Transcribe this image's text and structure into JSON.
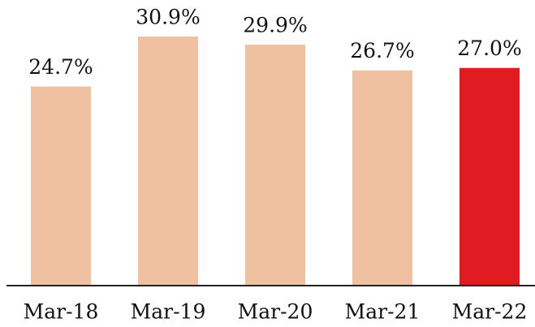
{
  "chart_data": {
    "type": "bar",
    "categories": [
      "Mar-18",
      "Mar-19",
      "Mar-20",
      "Mar-21",
      "Mar-22"
    ],
    "values": [
      24.7,
      30.9,
      29.9,
      26.7,
      27.0
    ],
    "value_labels": [
      "24.7%",
      "30.9%",
      "29.9%",
      "26.7%",
      "27.0%"
    ],
    "colors": [
      "#f0c1a0",
      "#f0c1a0",
      "#f0c1a0",
      "#f0c1a0",
      "#e01b22"
    ]
  }
}
